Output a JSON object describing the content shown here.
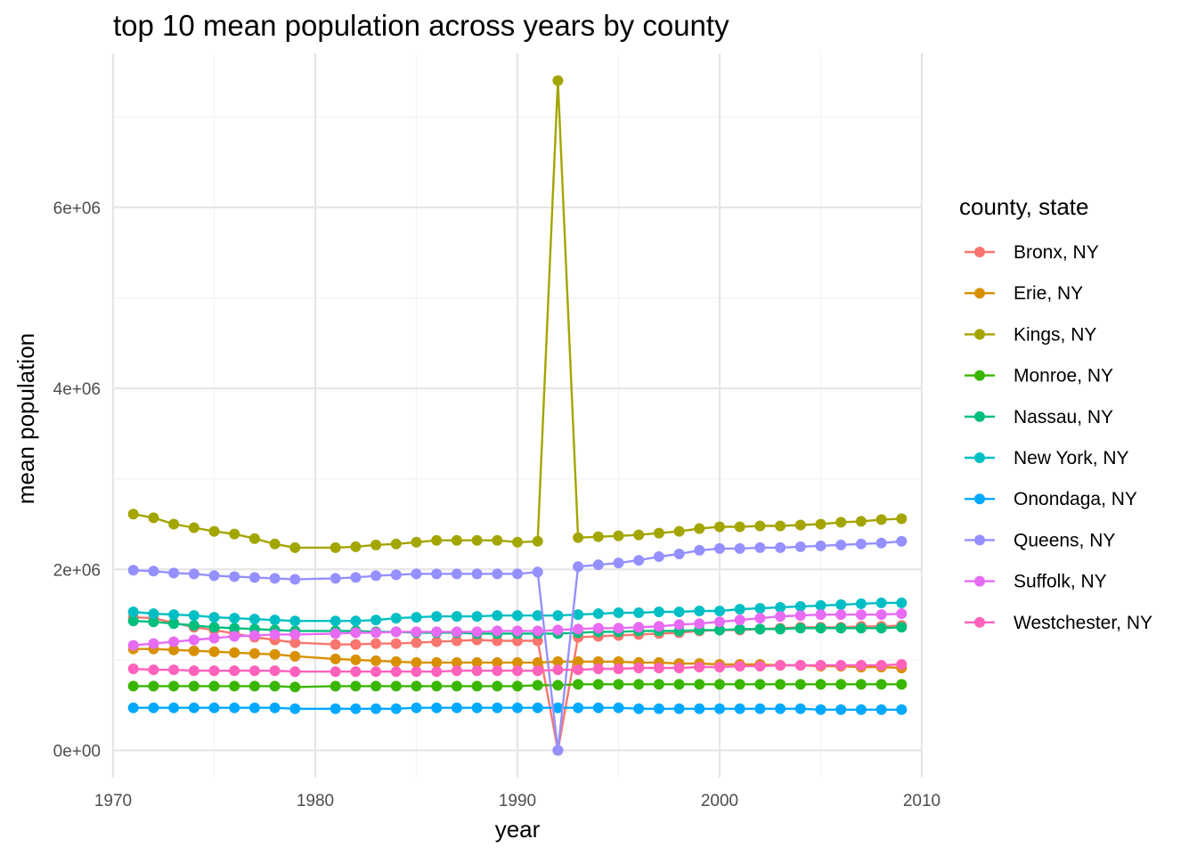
{
  "chart_data": {
    "type": "line",
    "title": "top 10 mean population across years by county",
    "xlabel": "year",
    "ylabel": "mean population",
    "xlim": [
      1970,
      2010
    ],
    "ylim": [
      -300000,
      7700000
    ],
    "x_ticks": [
      1970,
      1980,
      1990,
      2000,
      2010
    ],
    "x_tick_labels": [
      "1970",
      "1980",
      "1990",
      "2000",
      "2010"
    ],
    "y_ticks": [
      0,
      2000000,
      4000000,
      6000000
    ],
    "y_tick_labels": [
      "0e+00",
      "2e+06",
      "4e+06",
      "6e+06"
    ],
    "grid": true,
    "legend": {
      "title": "county, state",
      "position": "right"
    },
    "x": [
      1971,
      1972,
      1973,
      1974,
      1975,
      1976,
      1977,
      1978,
      1979,
      1981,
      1982,
      1983,
      1984,
      1985,
      1986,
      1987,
      1988,
      1989,
      1990,
      1991,
      1992,
      1993,
      1994,
      1995,
      1996,
      1997,
      1998,
      1999,
      2000,
      2001,
      2002,
      2003,
      2004,
      2005,
      2006,
      2007,
      2008,
      2009
    ],
    "series": [
      {
        "name": "Bronx, NY",
        "color": "#F8766D",
        "values": [
          1470000,
          1460000,
          1410000,
          1360000,
          1330000,
          1290000,
          1250000,
          1220000,
          1190000,
          1170000,
          1170000,
          1180000,
          1180000,
          1190000,
          1200000,
          1210000,
          1220000,
          1210000,
          1210000,
          1210000,
          0,
          1250000,
          1260000,
          1270000,
          1280000,
          1290000,
          1300000,
          1320000,
          1330000,
          1330000,
          1340000,
          1350000,
          1360000,
          1360000,
          1360000,
          1370000,
          1370000,
          1380000
        ]
      },
      {
        "name": "Erie, NY",
        "color": "#D89000",
        "values": [
          1120000,
          1120000,
          1110000,
          1100000,
          1090000,
          1080000,
          1070000,
          1060000,
          1040000,
          1010000,
          1000000,
          990000,
          980000,
          970000,
          970000,
          970000,
          970000,
          970000,
          970000,
          970000,
          980000,
          980000,
          980000,
          980000,
          970000,
          970000,
          960000,
          960000,
          950000,
          950000,
          950000,
          940000,
          940000,
          930000,
          930000,
          920000,
          920000,
          910000
        ]
      },
      {
        "name": "Kings, NY",
        "color": "#A3A500",
        "values": [
          2610000,
          2570000,
          2500000,
          2460000,
          2420000,
          2390000,
          2340000,
          2280000,
          2240000,
          2240000,
          2250000,
          2270000,
          2280000,
          2300000,
          2320000,
          2320000,
          2320000,
          2320000,
          2300000,
          2310000,
          7400000,
          2350000,
          2360000,
          2370000,
          2380000,
          2400000,
          2420000,
          2450000,
          2470000,
          2470000,
          2480000,
          2480000,
          2490000,
          2500000,
          2520000,
          2530000,
          2550000,
          2560000
        ]
      },
      {
        "name": "Monroe, NY",
        "color": "#39B600",
        "values": [
          710000,
          710000,
          710000,
          710000,
          710000,
          710000,
          710000,
          710000,
          700000,
          710000,
          710000,
          710000,
          710000,
          710000,
          710000,
          710000,
          710000,
          710000,
          710000,
          720000,
          720000,
          730000,
          730000,
          730000,
          730000,
          730000,
          730000,
          730000,
          730000,
          730000,
          730000,
          730000,
          730000,
          730000,
          730000,
          730000,
          730000,
          730000
        ]
      },
      {
        "name": "Nassau, NY",
        "color": "#00BF7D",
        "values": [
          1430000,
          1420000,
          1400000,
          1380000,
          1360000,
          1350000,
          1340000,
          1330000,
          1320000,
          1320000,
          1320000,
          1310000,
          1310000,
          1300000,
          1300000,
          1300000,
          1290000,
          1290000,
          1290000,
          1290000,
          1290000,
          1300000,
          1310000,
          1310000,
          1320000,
          1320000,
          1320000,
          1330000,
          1330000,
          1340000,
          1340000,
          1340000,
          1350000,
          1350000,
          1350000,
          1350000,
          1350000,
          1360000
        ]
      },
      {
        "name": "New York, NY",
        "color": "#00BFC4",
        "values": [
          1530000,
          1510000,
          1500000,
          1490000,
          1470000,
          1460000,
          1450000,
          1440000,
          1430000,
          1430000,
          1430000,
          1440000,
          1460000,
          1470000,
          1480000,
          1480000,
          1480000,
          1490000,
          1490000,
          1490000,
          1490000,
          1500000,
          1510000,
          1520000,
          1520000,
          1530000,
          1530000,
          1540000,
          1540000,
          1560000,
          1570000,
          1580000,
          1590000,
          1600000,
          1610000,
          1620000,
          1630000,
          1630000
        ]
      },
      {
        "name": "Onondaga, NY",
        "color": "#00A9FF",
        "values": [
          470000,
          470000,
          470000,
          470000,
          470000,
          470000,
          470000,
          470000,
          460000,
          460000,
          460000,
          460000,
          460000,
          470000,
          470000,
          470000,
          470000,
          470000,
          470000,
          470000,
          470000,
          470000,
          470000,
          470000,
          460000,
          460000,
          460000,
          460000,
          460000,
          460000,
          460000,
          460000,
          460000,
          450000,
          450000,
          450000,
          450000,
          450000
        ]
      },
      {
        "name": "Queens, NY",
        "color": "#9590FF",
        "values": [
          1990000,
          1980000,
          1960000,
          1950000,
          1930000,
          1920000,
          1910000,
          1900000,
          1890000,
          1900000,
          1910000,
          1930000,
          1940000,
          1950000,
          1950000,
          1950000,
          1950000,
          1950000,
          1950000,
          1970000,
          0,
          2030000,
          2050000,
          2070000,
          2100000,
          2140000,
          2170000,
          2210000,
          2230000,
          2230000,
          2240000,
          2240000,
          2250000,
          2260000,
          2270000,
          2280000,
          2290000,
          2310000
        ]
      },
      {
        "name": "Suffolk, NY",
        "color": "#E76BF3",
        "values": [
          1160000,
          1180000,
          1200000,
          1220000,
          1240000,
          1260000,
          1270000,
          1280000,
          1280000,
          1290000,
          1300000,
          1300000,
          1310000,
          1310000,
          1310000,
          1310000,
          1310000,
          1320000,
          1320000,
          1320000,
          1330000,
          1340000,
          1350000,
          1350000,
          1360000,
          1370000,
          1390000,
          1400000,
          1420000,
          1440000,
          1460000,
          1480000,
          1490000,
          1500000,
          1500000,
          1500000,
          1500000,
          1510000
        ]
      },
      {
        "name": "Westchester, NY",
        "color": "#FF62BC",
        "values": [
          900000,
          890000,
          890000,
          880000,
          880000,
          880000,
          880000,
          880000,
          870000,
          870000,
          870000,
          870000,
          870000,
          870000,
          870000,
          880000,
          880000,
          880000,
          880000,
          880000,
          890000,
          890000,
          900000,
          900000,
          910000,
          910000,
          910000,
          920000,
          920000,
          930000,
          930000,
          940000,
          940000,
          940000,
          940000,
          940000,
          940000,
          950000
        ]
      }
    ]
  }
}
